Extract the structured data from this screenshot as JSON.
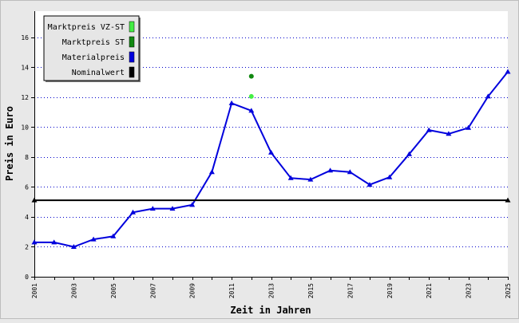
{
  "chart_data": {
    "type": "line",
    "xlabel": "Zeit in Jahren",
    "ylabel": "Preis in Euro",
    "xlim": [
      2001,
      2025
    ],
    "ylim": [
      0,
      17.75
    ],
    "x_ticks": [
      2001,
      2003,
      2005,
      2007,
      2009,
      2011,
      2013,
      2015,
      2017,
      2019,
      2021,
      2023,
      2025
    ],
    "y_ticks": [
      0,
      2,
      4,
      6,
      8,
      10,
      12,
      14,
      16
    ],
    "grid": "horizontal-dotted",
    "legend_position": "top-left",
    "series": [
      {
        "name": "Marktpreis VZ-ST",
        "type": "scatter",
        "color": "#44ee44",
        "x": [
          2012
        ],
        "y": [
          12.05
        ]
      },
      {
        "name": "Marktpreis ST",
        "type": "scatter",
        "color": "#118811",
        "x": [
          2012
        ],
        "y": [
          13.4
        ]
      },
      {
        "name": "Materialpreis",
        "type": "line",
        "color": "#0000dd",
        "x": [
          2001,
          2002,
          2003,
          2004,
          2005,
          2006,
          2007,
          2008,
          2009,
          2010,
          2011,
          2012,
          2013,
          2014,
          2015,
          2016,
          2017,
          2018,
          2019,
          2020,
          2021,
          2022,
          2023,
          2024,
          2025
        ],
        "y": [
          2.3,
          2.3,
          2.0,
          2.5,
          2.7,
          4.3,
          4.55,
          4.55,
          4.8,
          7.0,
          11.6,
          11.1,
          8.3,
          6.6,
          6.5,
          7.1,
          7.0,
          6.15,
          6.65,
          8.2,
          9.8,
          9.55,
          9.95,
          12.05,
          13.7
        ]
      },
      {
        "name": "Nominalwert",
        "type": "line",
        "color": "#000000",
        "x": [
          2001,
          2025
        ],
        "y": [
          5.11,
          5.11
        ]
      }
    ]
  }
}
